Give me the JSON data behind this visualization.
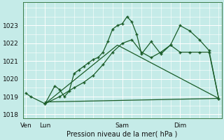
{
  "xlabel": "Pression niveau de la mer( hPa )",
  "bg_color": "#c5ebe8",
  "grid_color": "#ffffff",
  "line_color": "#1a5c28",
  "ylim": [
    1017.8,
    1024.3
  ],
  "yticks": [
    1018,
    1019,
    1020,
    1021,
    1022,
    1023
  ],
  "xlim": [
    -0.3,
    20.3
  ],
  "x_tick_positions": [
    0,
    2,
    10,
    16
  ],
  "x_tick_labels": [
    "Ven",
    "Lun",
    "Sam",
    "Dim"
  ],
  "vlines": [
    0,
    2,
    10,
    16
  ],
  "series1": {
    "x": [
      0,
      0.5,
      2,
      3,
      3.5,
      4,
      4.5,
      5,
      5.5,
      6,
      6.5,
      7,
      7.5,
      8,
      8.5,
      9,
      9.5,
      10,
      10.5,
      11,
      11.5,
      12,
      13,
      14,
      15,
      16,
      17,
      18,
      19,
      20
    ],
    "y": [
      1019.2,
      1019.0,
      1018.6,
      1019.6,
      1019.4,
      1019.0,
      1019.3,
      1020.3,
      1020.5,
      1020.7,
      1020.9,
      1021.1,
      1021.2,
      1021.5,
      1022.1,
      1022.8,
      1023.0,
      1023.1,
      1023.5,
      1023.2,
      1022.5,
      1021.4,
      1022.1,
      1021.4,
      1021.9,
      1023.0,
      1022.7,
      1022.2,
      1021.6,
      1018.9
    ]
  },
  "series2": {
    "x": [
      2,
      3.5,
      5,
      6,
      7,
      8,
      9,
      10,
      11,
      12,
      13,
      14,
      15,
      16,
      17,
      18,
      19,
      20
    ],
    "y": [
      1018.6,
      1019.0,
      1019.5,
      1019.8,
      1020.2,
      1020.8,
      1021.5,
      1022.0,
      1022.2,
      1021.5,
      1021.2,
      1021.5,
      1021.9,
      1021.5,
      1021.5,
      1021.5,
      1021.5,
      1018.9
    ]
  },
  "series3": {
    "x": [
      2,
      9.5,
      20
    ],
    "y": [
      1018.6,
      1021.9,
      1018.9
    ]
  },
  "series4_flat": {
    "x": [
      2,
      20
    ],
    "y": [
      1018.7,
      1018.9
    ]
  }
}
